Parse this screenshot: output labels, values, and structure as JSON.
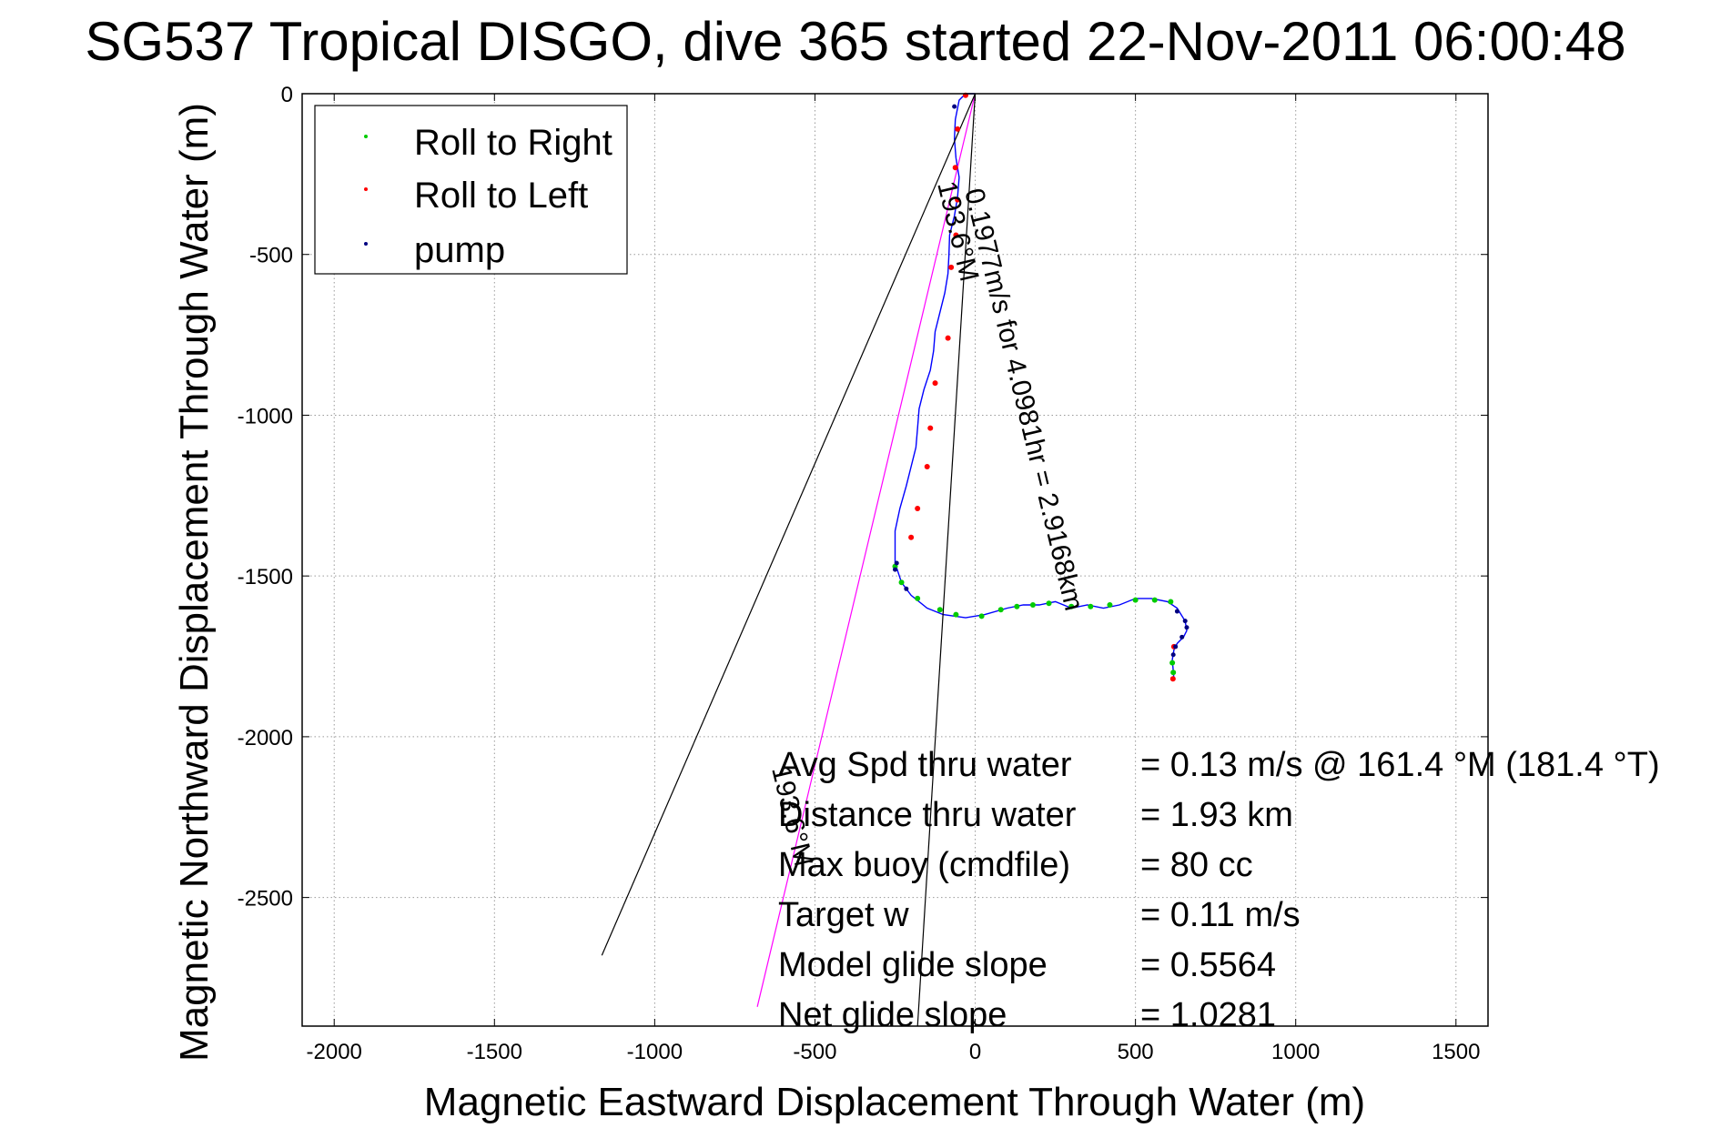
{
  "chart_data": {
    "type": "line",
    "title": "SG537 Tropical DISGO, dive 365 started 22-Nov-2011 06:00:48",
    "xlabel": "Magnetic Eastward Displacement Through Water (m)",
    "ylabel": "Magnetic Northward Displacement Through Water (m)",
    "xlim": [
      -2100,
      1600
    ],
    "ylim": [
      -2900,
      0
    ],
    "grid": true,
    "x_ticks": [
      -2000,
      -1500,
      -1000,
      -500,
      0,
      500,
      1000,
      1500
    ],
    "y_ticks": [
      0,
      -500,
      -1000,
      -1500,
      -2000,
      -2500
    ],
    "legend": {
      "placement": "top-left",
      "entries": [
        {
          "label": "Roll to Right",
          "color": "#00cc00"
        },
        {
          "label": "Roll to Left",
          "color": "#ff0000"
        },
        {
          "label": "pump",
          "color": "#000080"
        }
      ]
    },
    "series": [
      {
        "name": "track",
        "color": "#0000ff",
        "x": [
          0,
          -30,
          -50,
          -62,
          -65,
          -60,
          -50,
          -55,
          -65,
          -80,
          -82,
          -85,
          -95,
          -110,
          -125,
          -130,
          -140,
          -160,
          -175,
          -180,
          -185,
          -200,
          -215,
          -235,
          -250,
          -250,
          -230,
          -200,
          -150,
          -100,
          -30,
          30,
          100,
          150,
          200,
          250,
          300,
          350,
          400,
          450,
          500,
          550,
          600,
          630,
          655,
          660,
          650,
          630,
          620,
          615,
          620
        ],
        "y": [
          0,
          0,
          -20,
          -80,
          -140,
          -200,
          -260,
          -320,
          -380,
          -440,
          -500,
          -560,
          -620,
          -680,
          -740,
          -800,
          -860,
          -920,
          -980,
          -1040,
          -1100,
          -1160,
          -1220,
          -1290,
          -1360,
          -1460,
          -1520,
          -1560,
          -1600,
          -1620,
          -1630,
          -1620,
          -1600,
          -1590,
          -1590,
          -1580,
          -1600,
          -1590,
          -1600,
          -1590,
          -1570,
          -1570,
          -1580,
          -1600,
          -1640,
          -1670,
          -1690,
          -1710,
          -1730,
          -1760,
          -1820
        ]
      },
      {
        "name": "heading line",
        "color": "#ff00ff",
        "x": [
          0,
          -680
        ],
        "y": [
          0,
          -2840
        ]
      },
      {
        "name": "bearing line left",
        "color": "#000000",
        "x": [
          0,
          -1165
        ],
        "y": [
          0,
          -2680
        ]
      },
      {
        "name": "bearing line right",
        "color": "#000000",
        "x": [
          0,
          -180
        ],
        "y": [
          0,
          -2900
        ]
      }
    ],
    "markers": {
      "roll_to_right_points": [
        [
          -250,
          -1470
        ],
        [
          -230,
          -1520
        ],
        [
          -180,
          -1570
        ],
        [
          -110,
          -1605
        ],
        [
          -60,
          -1620
        ],
        [
          20,
          -1625
        ],
        [
          80,
          -1605
        ],
        [
          130,
          -1595
        ],
        [
          180,
          -1590
        ],
        [
          230,
          -1585
        ],
        [
          300,
          -1595
        ],
        [
          360,
          -1595
        ],
        [
          420,
          -1590
        ],
        [
          500,
          -1575
        ],
        [
          560,
          -1575
        ],
        [
          610,
          -1580
        ],
        [
          615,
          -1770
        ],
        [
          618,
          -1800
        ]
      ],
      "roll_to_left_points": [
        [
          -30,
          -5
        ],
        [
          -55,
          -110
        ],
        [
          -62,
          -230
        ],
        [
          -55,
          -330
        ],
        [
          -60,
          -440
        ],
        [
          -75,
          -540
        ],
        [
          -85,
          -760
        ],
        [
          -125,
          -900
        ],
        [
          -140,
          -1040
        ],
        [
          -150,
          -1160
        ],
        [
          -180,
          -1290
        ],
        [
          -200,
          -1380
        ],
        [
          620,
          -1720
        ],
        [
          617,
          -1820
        ]
      ],
      "pump_points": [
        [
          -65,
          -40
        ],
        [
          -245,
          -1460
        ],
        [
          -250,
          -1480
        ],
        [
          -215,
          -1540
        ],
        [
          630,
          -1610
        ],
        [
          655,
          -1640
        ],
        [
          660,
          -1660
        ],
        [
          645,
          -1690
        ],
        [
          625,
          -1720
        ],
        [
          618,
          -1745
        ]
      ]
    },
    "annotations": [
      {
        "text": "0.1977m/s for 4.0981hr = 2.9168km",
        "x": -50,
        "y": -300
      },
      {
        "text": "193.6°M",
        "x": -120,
        "y": -300
      },
      {
        "text": "193.6°M",
        "x": -620,
        "y": -2350
      }
    ],
    "stats": [
      {
        "label": "Avg Spd thru water",
        "value": "=  0.13 m/s @ 161.4  °M (181.4 °T)"
      },
      {
        "label": "Distance thru water",
        "value": "=  1.93 km"
      },
      {
        "label": "Max buoy (cmdfile)",
        "value": "= 80 cc"
      },
      {
        "label": "Target w",
        "value": "= 0.11 m/s"
      },
      {
        "label": "Model glide slope",
        "value": "= 0.5564"
      },
      {
        "label": "Net glide slope",
        "value": "= 1.0281"
      }
    ]
  }
}
